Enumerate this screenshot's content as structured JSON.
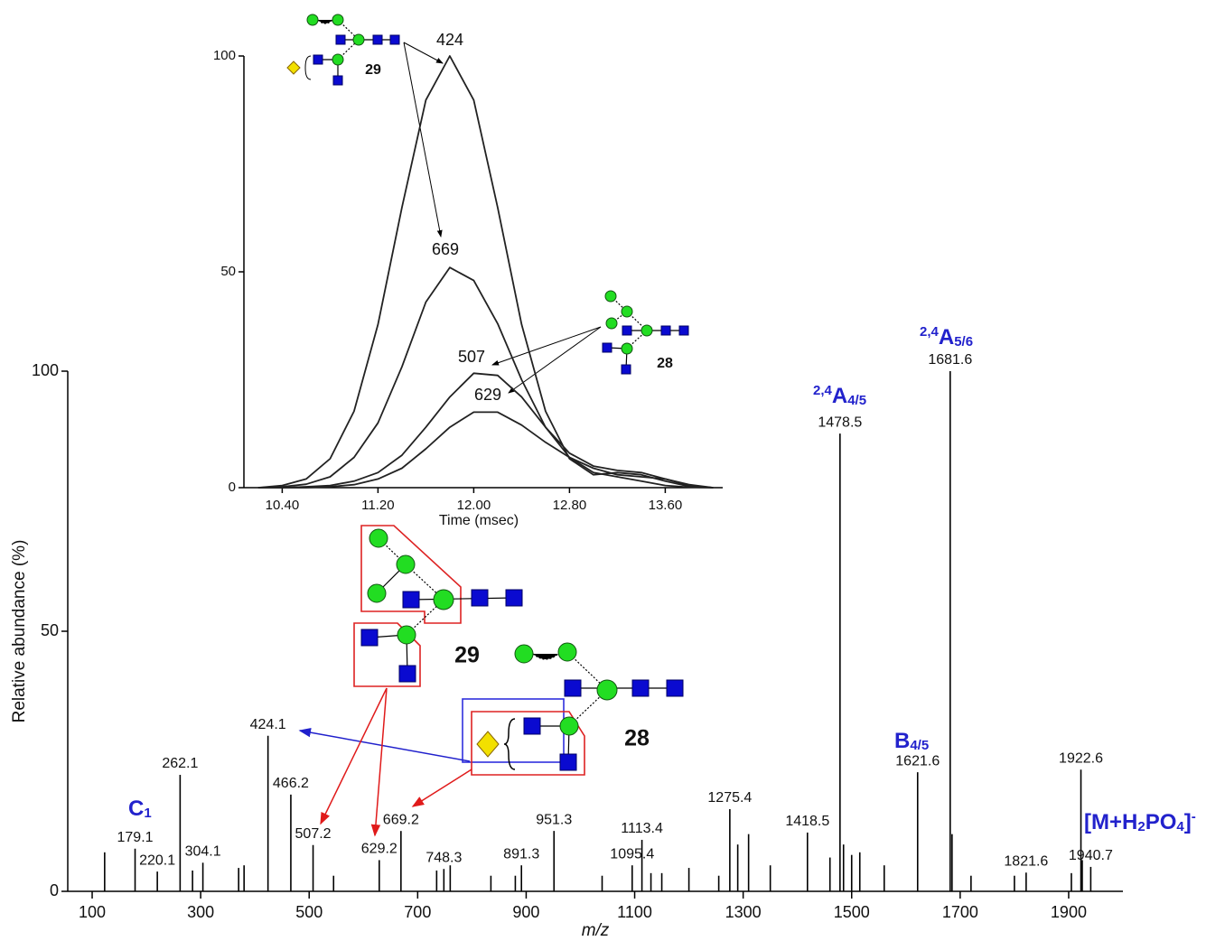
{
  "chart_data": [
    {
      "type": "stem",
      "x_label": "m/z",
      "y_label": "Relative abundance (%)",
      "xlim": [
        55,
        2000
      ],
      "ylim": [
        0,
        100
      ],
      "xticks": [
        100,
        300,
        500,
        700,
        900,
        1100,
        1300,
        1500,
        1700,
        1900
      ],
      "yticks": [
        0,
        50,
        100
      ],
      "series": [
        {
          "color": "#000000",
          "x": [
            179.1,
            220.1,
            262.1,
            304.1,
            424.1,
            466.2,
            507.2,
            629.2,
            669.2,
            748.3,
            891.3,
            951.3,
            1095.4,
            1113.4,
            1275.4,
            1418.5,
            1478.5,
            1621.6,
            1681.6,
            1821.6,
            1922.6,
            1940.7
          ],
          "values": [
            8.2,
            3.8,
            22.4,
            5.5,
            29.9,
            18.6,
            8.9,
            6,
            11.6,
            4.3,
            5,
            11.6,
            5,
            9.9,
            15.8,
            11.3,
            88,
            22.9,
            100,
            3.6,
            23.4,
            4.7
          ]
        },
        {
          "color": "#000000",
          "x": [
            123,
            285,
            370,
            380,
            545,
            735,
            760,
            835,
            880,
            1040,
            1130,
            1150,
            1200,
            1255,
            1290,
            1310,
            1350,
            1460,
            1485,
            1500,
            1515,
            1560,
            1685,
            1720,
            1800,
            1905,
            1925
          ],
          "values": [
            7.5,
            4,
            4.5,
            5,
            3,
            4,
            5,
            3,
            3,
            3,
            3.5,
            3.5,
            4.5,
            3,
            9,
            11,
            5,
            6.5,
            9,
            7,
            7.5,
            5,
            11,
            3,
            3,
            3.5,
            6
          ]
        }
      ],
      "ion_labels": [
        [
          {
            "text": "C"
          },
          {
            "sub": "1"
          }
        ],
        [
          {
            "sup": "2,4"
          },
          {
            "text": "A"
          },
          {
            "sub": "4/5"
          }
        ],
        [
          {
            "sup": "2,4"
          },
          {
            "text": "A"
          },
          {
            "sub": "5/6"
          }
        ],
        [
          {
            "text": "B"
          },
          {
            "sub": "4/5"
          }
        ],
        [
          {
            "text": "[M+H"
          },
          {
            "sub": "2"
          },
          {
            "text": "PO"
          },
          {
            "sub": "4"
          },
          {
            "text": "]"
          },
          {
            "sup": "-"
          }
        ]
      ],
      "structure_labels": [
        "29",
        "28"
      ]
    },
    {
      "type": "line",
      "x_label": "Time (msec)",
      "xlim": [
        10.08,
        14.08
      ],
      "ylim": [
        0,
        100
      ],
      "xticks": [
        {
          "value": 10.4,
          "label": "10.40"
        },
        {
          "value": 11.2,
          "label": "11.20"
        },
        {
          "value": 12.0,
          "label": "12.00"
        },
        {
          "value": 12.8,
          "label": "12.80"
        },
        {
          "value": 13.6,
          "label": "13.60"
        }
      ],
      "yticks": [
        0,
        50,
        100
      ],
      "x": [
        10.2,
        10.4,
        10.6,
        10.8,
        11.0,
        11.2,
        11.4,
        11.6,
        11.8,
        12.0,
        12.2,
        12.4,
        12.6,
        12.8,
        13.0,
        13.2,
        13.4,
        13.6,
        13.8,
        14.0
      ],
      "series": [
        {
          "name": "424",
          "color": "#222222",
          "values": [
            0,
            0.5,
            2,
            6.7,
            17.7,
            37.8,
            64.9,
            89.8,
            100,
            89.8,
            64.9,
            37.8,
            17.7,
            6.7,
            3,
            3.5,
            3,
            1.5,
            0.3,
            0
          ]
        },
        {
          "name": "669",
          "color": "#222222",
          "values": [
            0,
            0.2,
            0.8,
            2.5,
            7,
            15,
            28,
            43,
            51,
            48,
            38,
            25,
            14,
            7,
            3.5,
            2.5,
            1.5,
            0.5,
            0.1,
            0
          ]
        },
        {
          "name": "507",
          "color": "#222222",
          "values": [
            0,
            0,
            0.2,
            0.5,
            1.5,
            3.5,
            7.5,
            14,
            21,
            26.5,
            26,
            21,
            14,
            8,
            5,
            4,
            3.5,
            2,
            0.5,
            0
          ]
        },
        {
          "name": "629",
          "color": "#222222",
          "values": [
            0,
            0,
            0,
            0.2,
            0.7,
            2,
            4.5,
            9,
            14,
            17.5,
            17.5,
            14.5,
            10.5,
            7,
            4.5,
            3,
            2.5,
            2,
            0.7,
            0
          ]
        }
      ],
      "structure_labels": [
        "29",
        "28"
      ]
    }
  ]
}
